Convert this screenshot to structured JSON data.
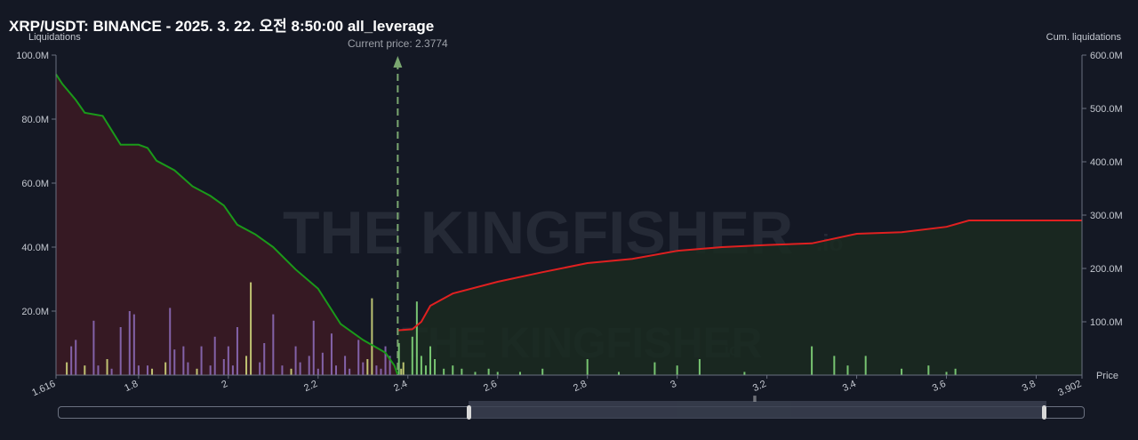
{
  "title": "XRP/USDT: BINANCE - 2025. 3. 22. 오전 8:50:00 all_leverage",
  "watermark": {
    "main": "THE KINGFISHER",
    "suffix": ".io"
  },
  "colors": {
    "background": "#141824",
    "short_liq": "#1a9a1a",
    "long_liq": "#e02020",
    "short_fill": "#3a1a24",
    "long_fill": "#1a2a20",
    "current_price": "#7aa670",
    "bars_purple": "#9070c0",
    "bars_yellow": "#d8e080",
    "bars_green": "#88e080"
  },
  "chart_data": {
    "type": "area",
    "title": "XRP/USDT: BINANCE - 2025. 3. 22. 오전 8:50:00 all_leverage",
    "xlabel": "Price",
    "ylabel_left": "Liquidations",
    "ylabel_right": "Cum. liquidations",
    "xlim": [
      1.616,
      3.902
    ],
    "ylim_left": [
      0,
      100000000
    ],
    "ylim_right": [
      0,
      600000000
    ],
    "x_ticks": [
      "1.616",
      "1.8",
      "2",
      "2.2",
      "2.4",
      "2.6",
      "2.8",
      "3",
      "3.2",
      "3.4",
      "3.6",
      "3.8",
      "3.902"
    ],
    "y_ticks_left": [
      "100.0M",
      "80.0M",
      "60.0M",
      "40.0M",
      "20.0M"
    ],
    "y_ticks_right": [
      "600.0M",
      "500.0M",
      "400.0M",
      "300.0M",
      "200.0M",
      "100.0M"
    ],
    "current_price_label": "Current price: 2.3774",
    "current_price": 2.3774,
    "grid": false,
    "series": [
      {
        "kind": "cumulative_short_below_price",
        "axis": "left",
        "points": [
          [
            1.616,
            94
          ],
          [
            1.63,
            91
          ],
          [
            1.66,
            86
          ],
          [
            1.68,
            82
          ],
          [
            1.72,
            81
          ],
          [
            1.76,
            72
          ],
          [
            1.8,
            72
          ],
          [
            1.82,
            71
          ],
          [
            1.84,
            67
          ],
          [
            1.88,
            64
          ],
          [
            1.92,
            59
          ],
          [
            1.96,
            56
          ],
          [
            1.99,
            53
          ],
          [
            2.02,
            47
          ],
          [
            2.06,
            44
          ],
          [
            2.1,
            40
          ],
          [
            2.15,
            33
          ],
          [
            2.2,
            27
          ],
          [
            2.25,
            16
          ],
          [
            2.3,
            11
          ],
          [
            2.35,
            7
          ],
          [
            2.37,
            3
          ],
          [
            2.3774,
            0
          ]
        ]
      },
      {
        "kind": "cumulative_long_above_price",
        "axis": "right",
        "points": [
          [
            2.3774,
            84
          ],
          [
            2.41,
            86
          ],
          [
            2.43,
            100
          ],
          [
            2.45,
            130
          ],
          [
            2.5,
            153
          ],
          [
            2.6,
            175
          ],
          [
            2.7,
            193
          ],
          [
            2.8,
            210
          ],
          [
            2.9,
            218
          ],
          [
            3.0,
            233
          ],
          [
            3.1,
            240
          ],
          [
            3.2,
            244
          ],
          [
            3.3,
            247
          ],
          [
            3.4,
            265
          ],
          [
            3.5,
            268
          ],
          [
            3.6,
            278
          ],
          [
            3.65,
            290
          ],
          [
            3.7,
            290
          ],
          [
            3.8,
            290
          ],
          [
            3.902,
            290
          ]
        ]
      }
    ],
    "bars": [
      {
        "x": 1.64,
        "v": 4,
        "c": "yellow"
      },
      {
        "x": 1.65,
        "v": 9,
        "c": "purple"
      },
      {
        "x": 1.66,
        "v": 11,
        "c": "purple"
      },
      {
        "x": 1.68,
        "v": 3,
        "c": "yellow"
      },
      {
        "x": 1.7,
        "v": 17,
        "c": "purple"
      },
      {
        "x": 1.71,
        "v": 3,
        "c": "purple"
      },
      {
        "x": 1.73,
        "v": 5,
        "c": "yellow"
      },
      {
        "x": 1.74,
        "v": 2,
        "c": "purple"
      },
      {
        "x": 1.76,
        "v": 15,
        "c": "purple"
      },
      {
        "x": 1.78,
        "v": 20,
        "c": "purple"
      },
      {
        "x": 1.79,
        "v": 19,
        "c": "purple"
      },
      {
        "x": 1.8,
        "v": 3,
        "c": "purple"
      },
      {
        "x": 1.82,
        "v": 3,
        "c": "purple"
      },
      {
        "x": 1.83,
        "v": 2,
        "c": "yellow"
      },
      {
        "x": 1.86,
        "v": 4,
        "c": "yellow"
      },
      {
        "x": 1.87,
        "v": 21,
        "c": "purple"
      },
      {
        "x": 1.88,
        "v": 8,
        "c": "purple"
      },
      {
        "x": 1.9,
        "v": 9,
        "c": "purple"
      },
      {
        "x": 1.91,
        "v": 4,
        "c": "purple"
      },
      {
        "x": 1.93,
        "v": 2,
        "c": "yellow"
      },
      {
        "x": 1.94,
        "v": 9,
        "c": "purple"
      },
      {
        "x": 1.96,
        "v": 3,
        "c": "purple"
      },
      {
        "x": 1.97,
        "v": 12,
        "c": "purple"
      },
      {
        "x": 1.99,
        "v": 5,
        "c": "purple"
      },
      {
        "x": 2.0,
        "v": 9,
        "c": "purple"
      },
      {
        "x": 2.01,
        "v": 3,
        "c": "purple"
      },
      {
        "x": 2.02,
        "v": 15,
        "c": "purple"
      },
      {
        "x": 2.04,
        "v": 6,
        "c": "yellow"
      },
      {
        "x": 2.05,
        "v": 29,
        "c": "yellow"
      },
      {
        "x": 2.07,
        "v": 4,
        "c": "purple"
      },
      {
        "x": 2.08,
        "v": 10,
        "c": "purple"
      },
      {
        "x": 2.1,
        "v": 19,
        "c": "purple"
      },
      {
        "x": 2.12,
        "v": 3,
        "c": "purple"
      },
      {
        "x": 2.14,
        "v": 2,
        "c": "yellow"
      },
      {
        "x": 2.15,
        "v": 9,
        "c": "purple"
      },
      {
        "x": 2.16,
        "v": 4,
        "c": "purple"
      },
      {
        "x": 2.18,
        "v": 6,
        "c": "purple"
      },
      {
        "x": 2.19,
        "v": 17,
        "c": "purple"
      },
      {
        "x": 2.2,
        "v": 2,
        "c": "purple"
      },
      {
        "x": 2.21,
        "v": 7,
        "c": "purple"
      },
      {
        "x": 2.23,
        "v": 13,
        "c": "purple"
      },
      {
        "x": 2.24,
        "v": 3,
        "c": "purple"
      },
      {
        "x": 2.26,
        "v": 6,
        "c": "purple"
      },
      {
        "x": 2.27,
        "v": 2,
        "c": "purple"
      },
      {
        "x": 2.29,
        "v": 11,
        "c": "purple"
      },
      {
        "x": 2.3,
        "v": 4,
        "c": "purple"
      },
      {
        "x": 2.31,
        "v": 5,
        "c": "yellow"
      },
      {
        "x": 2.32,
        "v": 24,
        "c": "yellow"
      },
      {
        "x": 2.33,
        "v": 3,
        "c": "purple"
      },
      {
        "x": 2.34,
        "v": 2,
        "c": "purple"
      },
      {
        "x": 2.35,
        "v": 9,
        "c": "purple"
      },
      {
        "x": 2.36,
        "v": 6,
        "c": "purple"
      },
      {
        "x": 2.38,
        "v": 10,
        "c": "green"
      },
      {
        "x": 2.385,
        "v": 2,
        "c": "yellow"
      },
      {
        "x": 2.39,
        "v": 4,
        "c": "yellow"
      },
      {
        "x": 2.41,
        "v": 12,
        "c": "green"
      },
      {
        "x": 2.42,
        "v": 23,
        "c": "green"
      },
      {
        "x": 2.43,
        "v": 6,
        "c": "green"
      },
      {
        "x": 2.44,
        "v": 3,
        "c": "green"
      },
      {
        "x": 2.45,
        "v": 9,
        "c": "green"
      },
      {
        "x": 2.46,
        "v": 5,
        "c": "green"
      },
      {
        "x": 2.48,
        "v": 2,
        "c": "green"
      },
      {
        "x": 2.5,
        "v": 3,
        "c": "green"
      },
      {
        "x": 2.52,
        "v": 2,
        "c": "green"
      },
      {
        "x": 2.55,
        "v": 1,
        "c": "green"
      },
      {
        "x": 2.58,
        "v": 2,
        "c": "green"
      },
      {
        "x": 2.6,
        "v": 1,
        "c": "green"
      },
      {
        "x": 2.65,
        "v": 1,
        "c": "green"
      },
      {
        "x": 2.7,
        "v": 2,
        "c": "green"
      },
      {
        "x": 2.8,
        "v": 5,
        "c": "green"
      },
      {
        "x": 2.87,
        "v": 1,
        "c": "green"
      },
      {
        "x": 2.95,
        "v": 4,
        "c": "green"
      },
      {
        "x": 3.0,
        "v": 3,
        "c": "green"
      },
      {
        "x": 3.05,
        "v": 5,
        "c": "green"
      },
      {
        "x": 3.15,
        "v": 1,
        "c": "green"
      },
      {
        "x": 3.3,
        "v": 9,
        "c": "green"
      },
      {
        "x": 3.35,
        "v": 6,
        "c": "green"
      },
      {
        "x": 3.38,
        "v": 3,
        "c": "green"
      },
      {
        "x": 3.42,
        "v": 6,
        "c": "green"
      },
      {
        "x": 3.5,
        "v": 2,
        "c": "green"
      },
      {
        "x": 3.56,
        "v": 3,
        "c": "green"
      },
      {
        "x": 3.6,
        "v": 1,
        "c": "green"
      },
      {
        "x": 3.62,
        "v": 2,
        "c": "green"
      }
    ]
  },
  "scrollbar": {
    "grip": "⦀"
  }
}
